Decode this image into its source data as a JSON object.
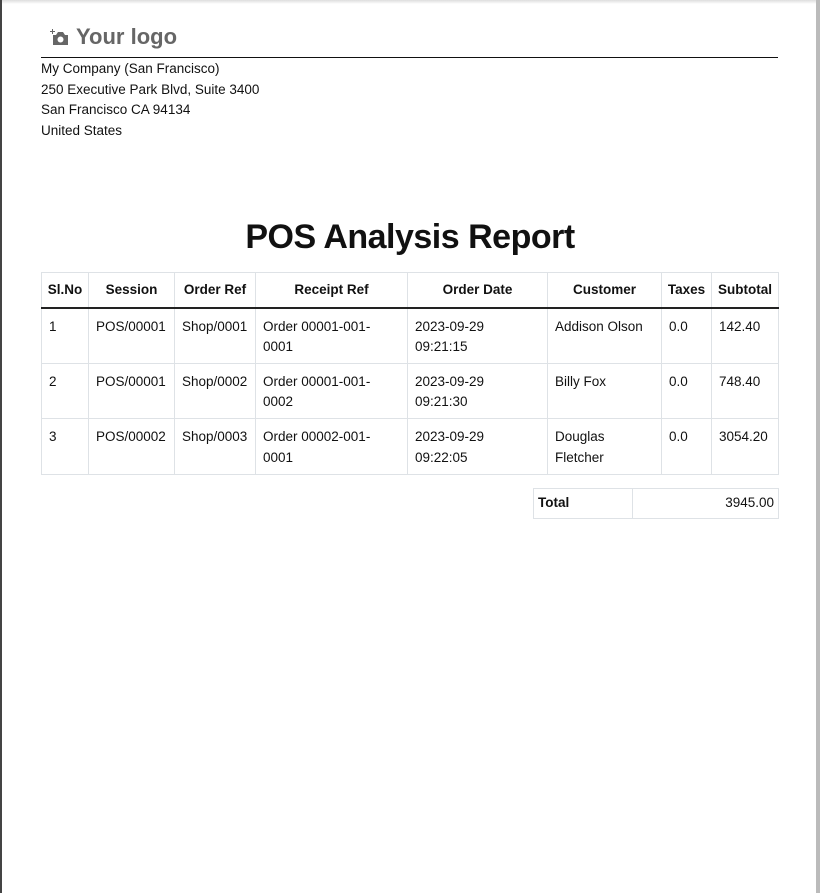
{
  "logo": {
    "text": "Your logo",
    "icon": "camera-plus-icon"
  },
  "company": {
    "lines": [
      "My Company (San Francisco)",
      "250 Executive Park Blvd, Suite 3400",
      "San Francisco CA 94134",
      "United States"
    ]
  },
  "title": "POS Analysis Report",
  "table": {
    "headers": [
      "Sl.No",
      "Session",
      "Order Ref",
      "Receipt Ref",
      "Order Date",
      "Customer",
      "Taxes",
      "Subtotal"
    ],
    "rows": [
      [
        "1",
        "POS/00001",
        "Shop/0001",
        "Order 00001-001-0001",
        "2023-09-29 09:21:15",
        "Addison Olson",
        "0.0",
        "142.40"
      ],
      [
        "2",
        "POS/00001",
        "Shop/0002",
        "Order 00001-001-0002",
        "2023-09-29 09:21:30",
        "Billy Fox",
        "0.0",
        "748.40"
      ],
      [
        "3",
        "POS/00002",
        "Shop/0003",
        "Order 00002-001-0001",
        "2023-09-29 09:22:05",
        "Douglas Fletcher",
        "0.0",
        "3054.20"
      ]
    ]
  },
  "total": {
    "label": "Total",
    "value": "3945.00"
  }
}
